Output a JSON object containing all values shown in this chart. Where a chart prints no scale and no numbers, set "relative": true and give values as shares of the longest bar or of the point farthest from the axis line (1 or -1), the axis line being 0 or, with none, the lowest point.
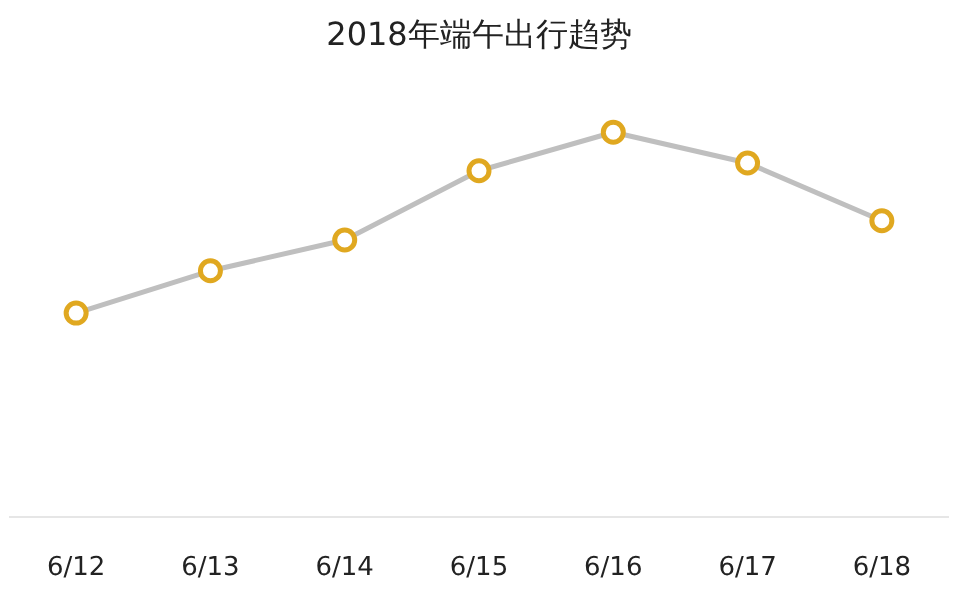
{
  "chart_data": {
    "type": "line",
    "title": "2018年端午出行趋势",
    "categories": [
      "6/12",
      "6/13",
      "6/14",
      "6/15",
      "6/16",
      "6/17",
      "6/18"
    ],
    "relative": true,
    "marker": "circle",
    "line_style": "solid",
    "series": [
      {
        "color": "#e0a820",
        "values": [
          0.53,
          0.64,
          0.72,
          0.9,
          1,
          0.92,
          0.77
        ]
      }
    ]
  }
}
